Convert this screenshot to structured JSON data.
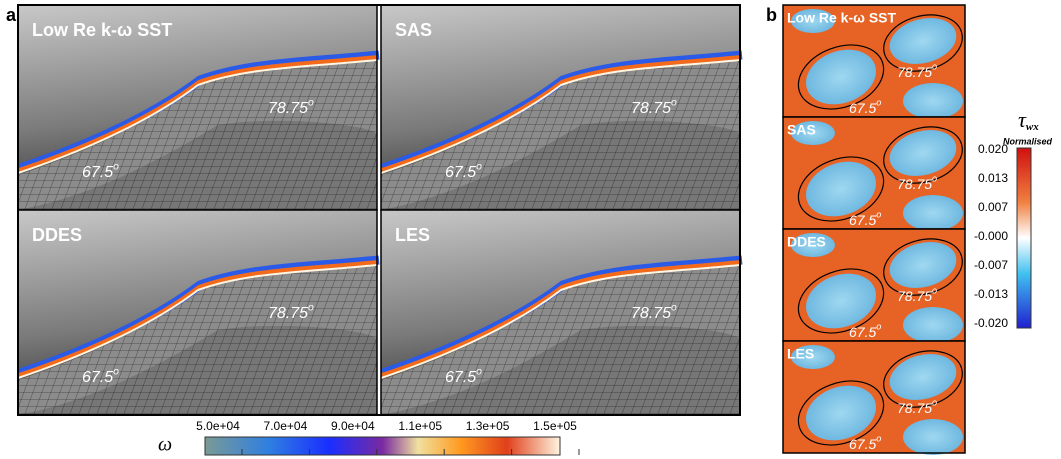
{
  "panel_a": {
    "label": "a",
    "panels": [
      {
        "title": "Low Re k-ω SST",
        "angle_upper": {
          "value": "78.75",
          "sup": "o"
        },
        "angle_lower": {
          "value": "67.5",
          "sup": "o"
        }
      },
      {
        "title": "SAS",
        "angle_upper": {
          "value": "78.75",
          "sup": "o"
        },
        "angle_lower": {
          "value": "67.5",
          "sup": "o"
        }
      },
      {
        "title": "DDES",
        "angle_upper": {
          "value": "78.75",
          "sup": "o"
        },
        "angle_lower": {
          "value": "67.5",
          "sup": "o"
        }
      },
      {
        "title": "LES",
        "angle_upper": {
          "value": "78.75",
          "sup": "o"
        },
        "angle_lower": {
          "value": "67.5",
          "sup": "o"
        }
      }
    ],
    "colorbar": {
      "symbol": "ω",
      "ticks": [
        "5.0e+04",
        "7.0e+04",
        "9.0e+04",
        "1.1e+05",
        "1.3e+05",
        "1.5e+05"
      ]
    }
  },
  "panel_b": {
    "label": "b",
    "panels": [
      {
        "title": "Low Re k-ω SST",
        "angle_upper": {
          "value": "78.75",
          "sup": "o"
        },
        "angle_lower": {
          "value": "67.5",
          "sup": "o"
        }
      },
      {
        "title": "SAS",
        "angle_upper": {
          "value": "78.75",
          "sup": "o"
        },
        "angle_lower": {
          "value": "67.5",
          "sup": "o"
        }
      },
      {
        "title": "DDES",
        "angle_upper": {
          "value": "78.75",
          "sup": "o"
        },
        "angle_lower": {
          "value": "67.5",
          "sup": "o"
        }
      },
      {
        "title": "LES",
        "angle_upper": {
          "value": "78.75",
          "sup": "o"
        },
        "angle_lower": {
          "value": "67.5",
          "sup": "o"
        }
      }
    ],
    "colorbar": {
      "symbol": "τ",
      "subscript": "wx",
      "subtitle": "Normalised",
      "ticks": [
        "0.020",
        "0.013",
        "0.007",
        "-0.000",
        "-0.007",
        "-0.013",
        "-0.020"
      ]
    }
  }
}
